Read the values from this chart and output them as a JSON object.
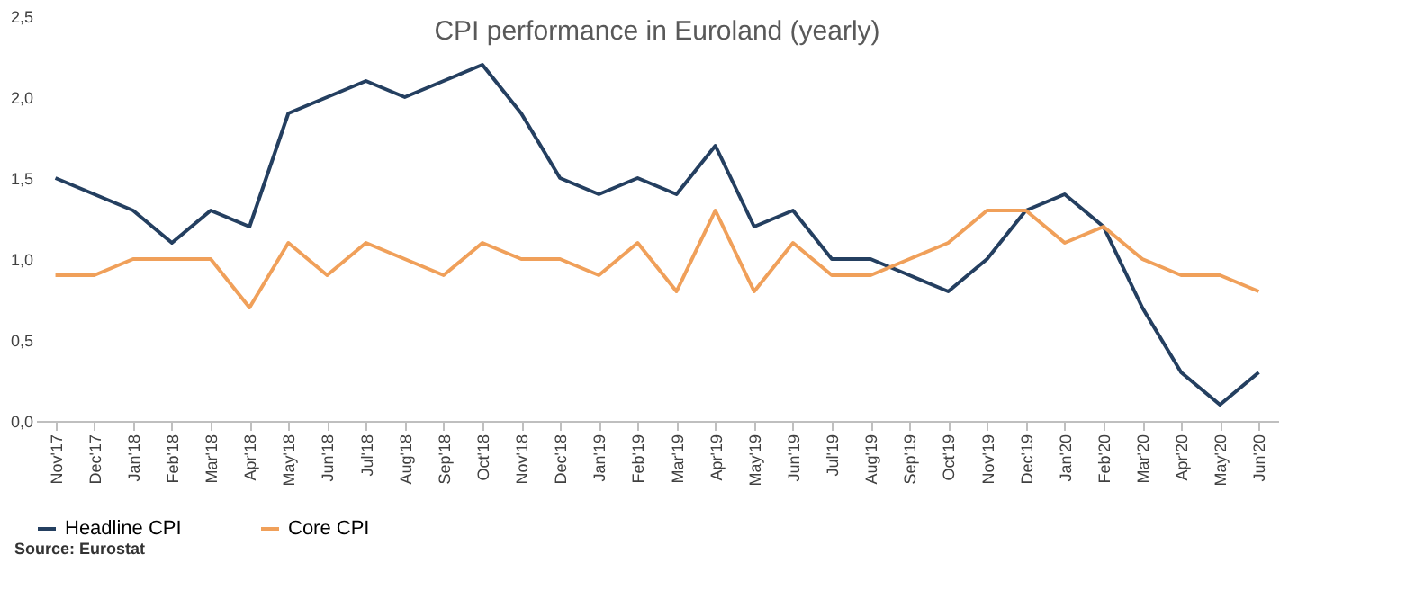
{
  "chart_data": {
    "type": "line",
    "title": "CPI performance in Euroland (yearly)",
    "categories": [
      "Nov'17",
      "Dec'17",
      "Jan'18",
      "Feb'18",
      "Mar'18",
      "Apr'18",
      "May'18",
      "Jun'18",
      "Jul'18",
      "Aug'18",
      "Sep'18",
      "Oct'18",
      "Nov'18",
      "Dec'18",
      "Jan'19",
      "Feb'19",
      "Mar'19",
      "Apr'19",
      "May'19",
      "Jun'19",
      "Jul'19",
      "Aug'19",
      "Sep'19",
      "Oct'19",
      "Nov'19",
      "Dec'19",
      "Jan'20",
      "Feb'20",
      "Mar'20",
      "Apr'20",
      "May'20",
      "Jun'20"
    ],
    "series": [
      {
        "name": "Headline CPI",
        "color": "#243f60",
        "values": [
          1.5,
          1.4,
          1.3,
          1.1,
          1.3,
          1.2,
          1.9,
          2.0,
          2.1,
          2.0,
          2.1,
          2.2,
          1.9,
          1.5,
          1.4,
          1.5,
          1.4,
          1.7,
          1.2,
          1.3,
          1.0,
          1.0,
          0.9,
          0.8,
          1.0,
          1.3,
          1.4,
          1.2,
          0.7,
          0.3,
          0.1,
          0.3
        ]
      },
      {
        "name": "Core CPI",
        "color": "#f0a05a",
        "values": [
          0.9,
          0.9,
          1.0,
          1.0,
          1.0,
          0.7,
          1.1,
          0.9,
          1.1,
          1.0,
          0.9,
          1.1,
          1.0,
          1.0,
          0.9,
          1.1,
          0.8,
          1.3,
          0.8,
          1.1,
          0.9,
          0.9,
          1.0,
          1.1,
          1.3,
          1.3,
          1.1,
          1.2,
          1.0,
          0.9,
          0.9,
          0.8
        ]
      }
    ],
    "ylim": [
      0,
      2.5
    ],
    "yticks": [
      {
        "value": 0,
        "label": "0,0"
      },
      {
        "value": 0.5,
        "label": "0,5"
      },
      {
        "value": 1,
        "label": "1,0"
      },
      {
        "value": 1.5,
        "label": "1,5"
      },
      {
        "value": 2,
        "label": "2,0"
      },
      {
        "value": 2.5,
        "label": "2,5"
      }
    ],
    "grid": false,
    "legend": "bottom",
    "marker": "none",
    "line_style": "solid",
    "annotations": [
      "Source: Eurostat"
    ]
  }
}
